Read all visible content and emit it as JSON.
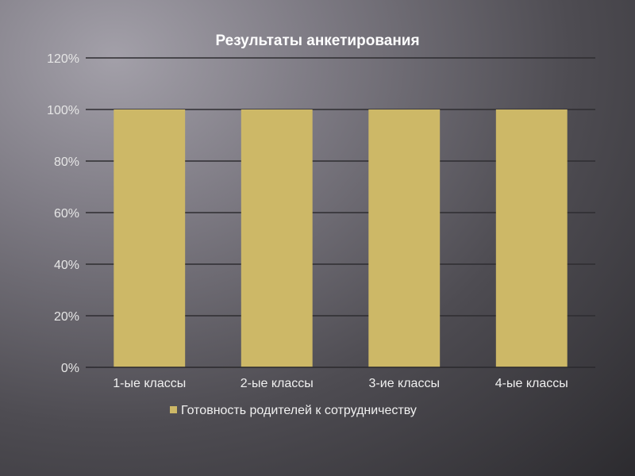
{
  "chart_data": {
    "type": "bar",
    "title": "Результаты анкетирования",
    "categories": [
      "1-ые классы",
      "2-ые классы",
      "3-ие классы",
      "4-ые классы"
    ],
    "series": [
      {
        "name": "Готовность родителей к сотрудничеству",
        "values": [
          100,
          100,
          100,
          100
        ],
        "color": "#cdb867"
      }
    ],
    "ylim": [
      0,
      120
    ],
    "yticks": [
      "0%",
      "20%",
      "40%",
      "60%",
      "80%",
      "100%",
      "120%"
    ],
    "grid": true,
    "legend": "bottom"
  }
}
